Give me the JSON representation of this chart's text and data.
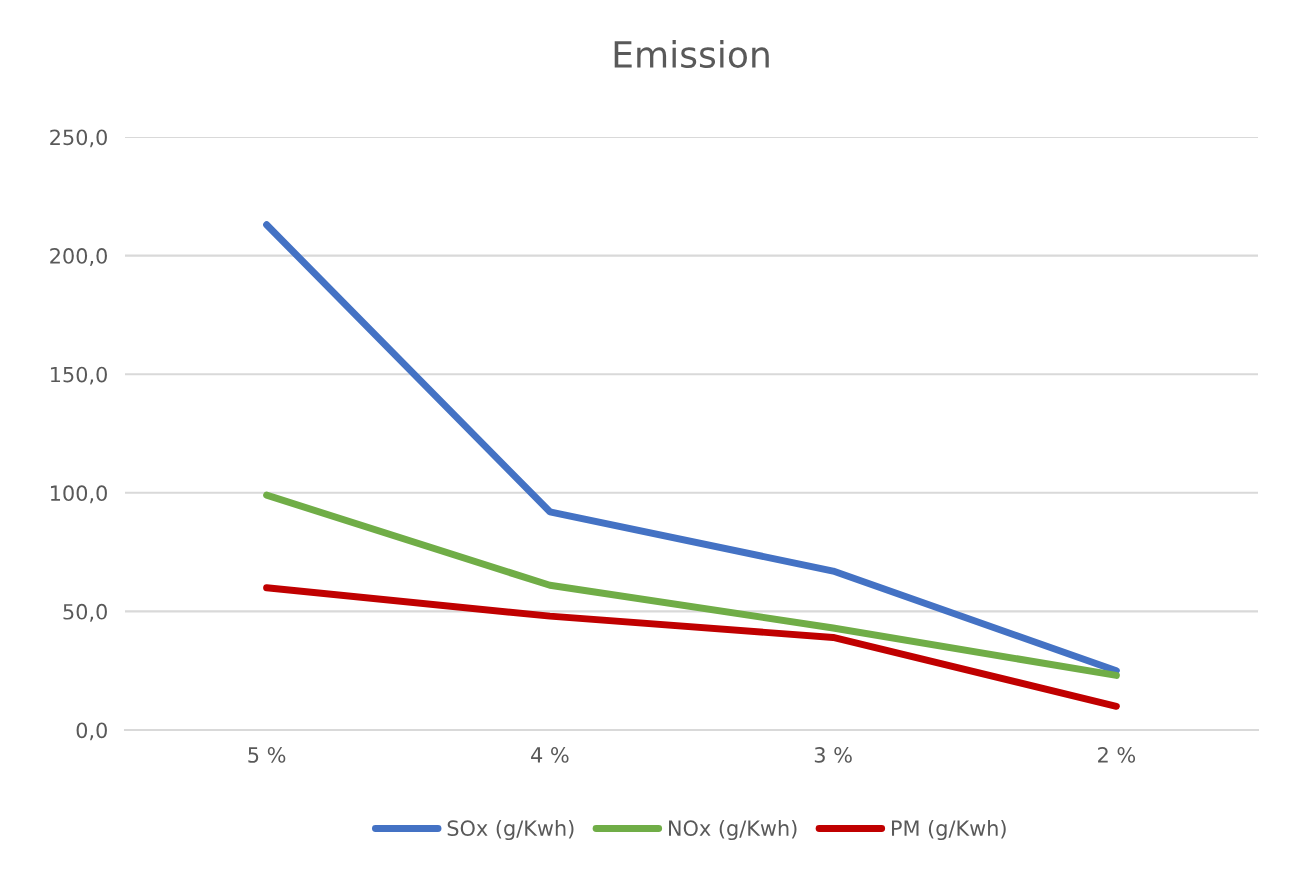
{
  "chart_data": {
    "type": "line",
    "title": "Emission",
    "categories": [
      "5 %",
      "4 %",
      "3 %",
      "2 %"
    ],
    "series": [
      {
        "name": "SOx (g/Kwh)",
        "color": "#4472c4",
        "values": [
          213,
          92,
          67,
          25
        ]
      },
      {
        "name": "NOx (g/Kwh)",
        "color": "#70ad47",
        "values": [
          99,
          61,
          43,
          23
        ]
      },
      {
        "name": "PM (g/Kwh)",
        "color": "#c00000",
        "values": [
          60,
          48,
          39,
          10
        ]
      }
    ],
    "ylim": [
      0,
      250
    ],
    "yticks": [
      {
        "value": 0,
        "label": "0,0"
      },
      {
        "value": 50,
        "label": "50,0"
      },
      {
        "value": 100,
        "label": "100,0"
      },
      {
        "value": 150,
        "label": "150,0"
      },
      {
        "value": 200,
        "label": "200,0"
      },
      {
        "value": 250,
        "label": "250,0"
      }
    ],
    "grid": "y",
    "legend": "bottom",
    "marker": "none",
    "line_style": "solid"
  }
}
